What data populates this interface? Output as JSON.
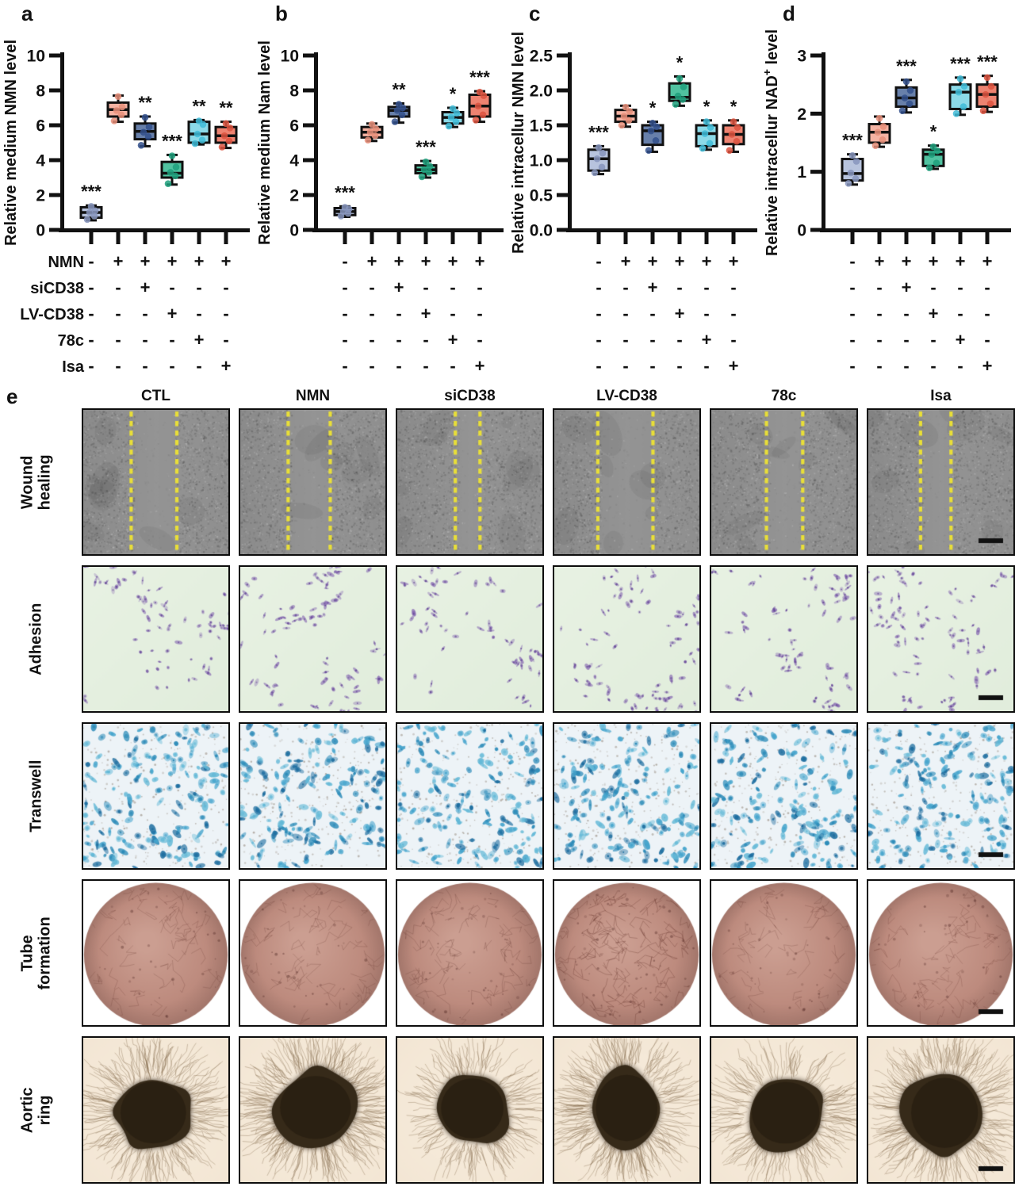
{
  "chart_data": [
    {
      "type": "box",
      "letter": "a",
      "ylabel": "Relative medium NMN level",
      "ylabel_sup": "",
      "ylabel_post": "",
      "ymax": 10,
      "yticks": [
        0,
        2,
        4,
        6,
        8,
        10
      ],
      "ytick_labels": [
        "0",
        "2",
        "4",
        "6",
        "8",
        "10"
      ],
      "groups": [
        "CTL",
        "NMN",
        "siCD38",
        "LV-CD38",
        "78c",
        "Isa"
      ],
      "significance": [
        "***",
        "",
        "**",
        "***",
        "**",
        "**"
      ],
      "show_matrix_labels": true,
      "boxes": [
        {
          "lo": 0.55,
          "q1": 0.7,
          "med": 1.0,
          "q3": 1.3,
          "hi": 1.4,
          "points": [
            0.6,
            0.8,
            1.0,
            1.1,
            1.35
          ]
        },
        {
          "lo": 6.2,
          "q1": 6.5,
          "med": 6.9,
          "q3": 7.3,
          "hi": 7.7,
          "points": [
            6.25,
            6.6,
            6.85,
            7.05,
            7.65
          ]
        },
        {
          "lo": 4.8,
          "q1": 5.2,
          "med": 5.65,
          "q3": 6.1,
          "hi": 6.5,
          "points": [
            4.85,
            5.35,
            5.6,
            5.9,
            6.45
          ]
        },
        {
          "lo": 2.6,
          "q1": 3.0,
          "med": 3.25,
          "q3": 3.9,
          "hi": 4.3,
          "points": [
            2.65,
            3.1,
            3.3,
            3.6,
            4.25
          ]
        },
        {
          "lo": 4.9,
          "q1": 5.0,
          "med": 5.5,
          "q3": 6.2,
          "hi": 6.3,
          "points": [
            4.95,
            5.15,
            5.5,
            6.05,
            6.25
          ]
        },
        {
          "lo": 4.7,
          "q1": 5.0,
          "med": 5.4,
          "q3": 5.9,
          "hi": 6.2,
          "points": [
            4.75,
            5.1,
            5.4,
            5.85,
            6.1
          ]
        }
      ]
    },
    {
      "type": "box",
      "letter": "b",
      "ylabel": "Relative medium Nam level",
      "ylabel_sup": "",
      "ylabel_post": "",
      "ymax": 10,
      "yticks": [
        0,
        2,
        4,
        6,
        8,
        10
      ],
      "ytick_labels": [
        "0",
        "2",
        "4",
        "6",
        "8",
        "10"
      ],
      "groups": [
        "CTL",
        "NMN",
        "siCD38",
        "LV-CD38",
        "78c",
        "Isa"
      ],
      "significance": [
        "***",
        "",
        "**",
        "***",
        "*",
        "***"
      ],
      "show_matrix_labels": false,
      "boxes": [
        {
          "lo": 0.75,
          "q1": 0.85,
          "med": 1.05,
          "q3": 1.25,
          "hi": 1.35,
          "points": [
            0.8,
            0.95,
            1.05,
            1.2,
            1.3
          ]
        },
        {
          "lo": 5.1,
          "q1": 5.3,
          "med": 5.6,
          "q3": 5.9,
          "hi": 6.1,
          "points": [
            5.15,
            5.4,
            5.6,
            5.8,
            6.05
          ]
        },
        {
          "lo": 6.15,
          "q1": 6.5,
          "med": 6.85,
          "q3": 7.05,
          "hi": 7.25,
          "points": [
            6.2,
            6.6,
            6.85,
            7.0,
            7.2
          ]
        },
        {
          "lo": 3.0,
          "q1": 3.25,
          "med": 3.45,
          "q3": 3.7,
          "hi": 3.95,
          "points": [
            3.05,
            3.3,
            3.45,
            3.65,
            3.9
          ]
        },
        {
          "lo": 5.9,
          "q1": 6.1,
          "med": 6.45,
          "q3": 6.75,
          "hi": 7.0,
          "points": [
            5.95,
            6.2,
            6.45,
            6.7,
            6.95
          ]
        },
        {
          "lo": 6.2,
          "q1": 6.5,
          "med": 7.1,
          "q3": 7.75,
          "hi": 7.95,
          "points": [
            6.3,
            6.6,
            7.1,
            7.7,
            7.9
          ]
        }
      ]
    },
    {
      "type": "box",
      "letter": "c",
      "ylabel": "Relative intracellur NMN level",
      "ylabel_sup": "",
      "ylabel_post": "",
      "ymax": 2.5,
      "yticks": [
        0,
        0.5,
        1,
        1.5,
        2,
        2.5
      ],
      "ytick_labels": [
        "0.0",
        "0.5",
        "1.0",
        "1.5",
        "2.0",
        "2.5"
      ],
      "groups": [
        "CTL",
        "NMN",
        "siCD38",
        "LV-CD38",
        "78c",
        "Isa"
      ],
      "significance": [
        "***",
        "",
        "*",
        "*",
        "*",
        "*"
      ],
      "show_matrix_labels": false,
      "boxes": [
        {
          "lo": 0.8,
          "q1": 0.85,
          "med": 1.02,
          "q3": 1.15,
          "hi": 1.2,
          "points": [
            0.82,
            0.9,
            1.02,
            1.1,
            1.18
          ]
        },
        {
          "lo": 1.48,
          "q1": 1.55,
          "med": 1.63,
          "q3": 1.72,
          "hi": 1.78,
          "points": [
            1.5,
            1.57,
            1.63,
            1.7,
            1.76
          ]
        },
        {
          "lo": 1.12,
          "q1": 1.22,
          "med": 1.42,
          "q3": 1.5,
          "hi": 1.55,
          "points": [
            1.14,
            1.28,
            1.42,
            1.48,
            1.53
          ]
        },
        {
          "lo": 1.78,
          "q1": 1.85,
          "med": 1.9,
          "q3": 2.1,
          "hi": 2.2,
          "points": [
            1.8,
            1.87,
            1.92,
            2.05,
            2.17
          ]
        },
        {
          "lo": 1.15,
          "q1": 1.2,
          "med": 1.38,
          "q3": 1.5,
          "hi": 1.57,
          "points": [
            1.17,
            1.24,
            1.38,
            1.47,
            1.55
          ]
        },
        {
          "lo": 1.12,
          "q1": 1.23,
          "med": 1.37,
          "q3": 1.5,
          "hi": 1.57,
          "points": [
            1.14,
            1.27,
            1.37,
            1.47,
            1.55
          ]
        }
      ]
    },
    {
      "type": "box",
      "letter": "d",
      "ylabel": "Relative intracellur NAD",
      "ylabel_sup": "+",
      "ylabel_post": " level",
      "ymax": 3,
      "yticks": [
        0,
        1,
        2,
        3
      ],
      "ytick_labels": [
        "0",
        "1",
        "2",
        "3"
      ],
      "groups": [
        "CTL",
        "NMN",
        "siCD38",
        "LV-CD38",
        "78c",
        "Isa"
      ],
      "significance": [
        "***",
        "",
        "***",
        "*",
        "***",
        "***"
      ],
      "show_matrix_labels": false,
      "boxes": [
        {
          "lo": 0.78,
          "q1": 0.85,
          "med": 0.97,
          "q3": 1.22,
          "hi": 1.3,
          "points": [
            0.8,
            0.88,
            0.98,
            1.18,
            1.28
          ]
        },
        {
          "lo": 1.43,
          "q1": 1.5,
          "med": 1.68,
          "q3": 1.82,
          "hi": 1.95,
          "points": [
            1.45,
            1.55,
            1.68,
            1.78,
            1.92
          ]
        },
        {
          "lo": 2.02,
          "q1": 2.12,
          "med": 2.27,
          "q3": 2.45,
          "hi": 2.58,
          "points": [
            2.05,
            2.17,
            2.27,
            2.4,
            2.55
          ]
        },
        {
          "lo": 1.05,
          "q1": 1.1,
          "med": 1.3,
          "q3": 1.38,
          "hi": 1.45,
          "points": [
            1.07,
            1.15,
            1.3,
            1.36,
            1.43
          ]
        },
        {
          "lo": 1.98,
          "q1": 2.08,
          "med": 2.37,
          "q3": 2.5,
          "hi": 2.62,
          "points": [
            2.0,
            2.12,
            2.37,
            2.47,
            2.6
          ]
        },
        {
          "lo": 2.03,
          "q1": 2.12,
          "med": 2.33,
          "q3": 2.5,
          "hi": 2.65,
          "points": [
            2.05,
            2.17,
            2.33,
            2.47,
            2.62
          ]
        }
      ]
    }
  ],
  "style_colors": {
    "group_fill": [
      "#b7c3dd",
      "#f5b3a3",
      "#6880aa",
      "#50c2a0",
      "#8cdae8",
      "#ee8371"
    ],
    "group_point": [
      "#8795bd",
      "#e78f7a",
      "#32508c",
      "#1ea07c",
      "#3fbcd8",
      "#dd5340"
    ],
    "axis": "#111111"
  },
  "treatment_matrix": {
    "rows": [
      {
        "label": "NMN",
        "signs": [
          "-",
          "+",
          "+",
          "+",
          "+",
          "+"
        ]
      },
      {
        "label": "siCD38",
        "signs": [
          "-",
          "-",
          "+",
          "-",
          "-",
          "-"
        ]
      },
      {
        "label": "LV-CD38",
        "signs": [
          "-",
          "-",
          "-",
          "+",
          "-",
          "-"
        ]
      },
      {
        "label": "78c",
        "signs": [
          "-",
          "-",
          "-",
          "-",
          "+",
          "-"
        ]
      },
      {
        "label": "Isa",
        "signs": [
          "-",
          "-",
          "-",
          "-",
          "-",
          "+"
        ]
      }
    ]
  },
  "micro": {
    "letter": "e",
    "columns": [
      "CTL",
      "NMN",
      "siCD38",
      "LV-CD38",
      "78c",
      "Isa"
    ],
    "rows": [
      {
        "label": "Wound\nhealing",
        "type": "wound"
      },
      {
        "label": "Adhesion",
        "type": "adhesion"
      },
      {
        "label": "Transwell",
        "type": "transwell"
      },
      {
        "label": "Tube\nformation",
        "type": "tube"
      },
      {
        "label": "Aortic ring",
        "type": "aortic"
      }
    ],
    "wound_gap_lines": [
      [
        0.33,
        0.645
      ],
      [
        0.33,
        0.62
      ],
      [
        0.4,
        0.57
      ],
      [
        0.3,
        0.68
      ],
      [
        0.38,
        0.63
      ],
      [
        0.36,
        0.57
      ]
    ],
    "tube_density": [
      1,
      1,
      1.1,
      1.9,
      1,
      1.05
    ],
    "aortic_density": [
      1,
      1.35,
      0.75,
      1.2,
      0.85,
      1.15
    ],
    "colors": {
      "wound_base": "#8f8f8f",
      "wound_dash": "#e9df37",
      "adhesion_bg": "#e8f2e3",
      "adhesion_cell": "#8b6fb4",
      "transwell_bg": "#edf3f7",
      "transwell_cell": "#3f9ecb",
      "tube_well": "#bd8b7e",
      "aortic_bg": "#f3e6d4",
      "aortic_ring": "#362a19",
      "scalebar": "#111111"
    }
  }
}
